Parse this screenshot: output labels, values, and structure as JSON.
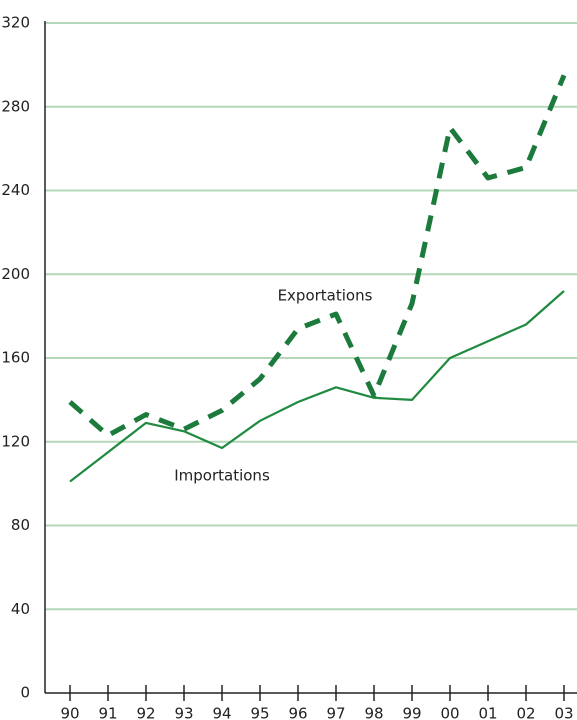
{
  "chart_data": {
    "type": "line",
    "categories": [
      "90",
      "91",
      "92",
      "93",
      "94",
      "95",
      "96",
      "97",
      "98",
      "99",
      "00",
      "01",
      "02",
      "03"
    ],
    "series": [
      {
        "name": "Exportations",
        "color": "#1b7a3c",
        "dashed": true,
        "values": [
          139,
          123,
          133,
          126,
          135,
          150,
          174,
          181,
          142,
          186,
          270,
          246,
          251,
          295
        ]
      },
      {
        "name": "Importations",
        "color": "#1f8a40",
        "dashed": false,
        "values": [
          101,
          115,
          129,
          125,
          117,
          130,
          139,
          146,
          141,
          140,
          160,
          168,
          176,
          192
        ]
      }
    ],
    "ylim": [
      0,
      320
    ],
    "yticks": [
      0,
      40,
      80,
      120,
      160,
      200,
      240,
      280,
      320
    ],
    "grid": true
  }
}
